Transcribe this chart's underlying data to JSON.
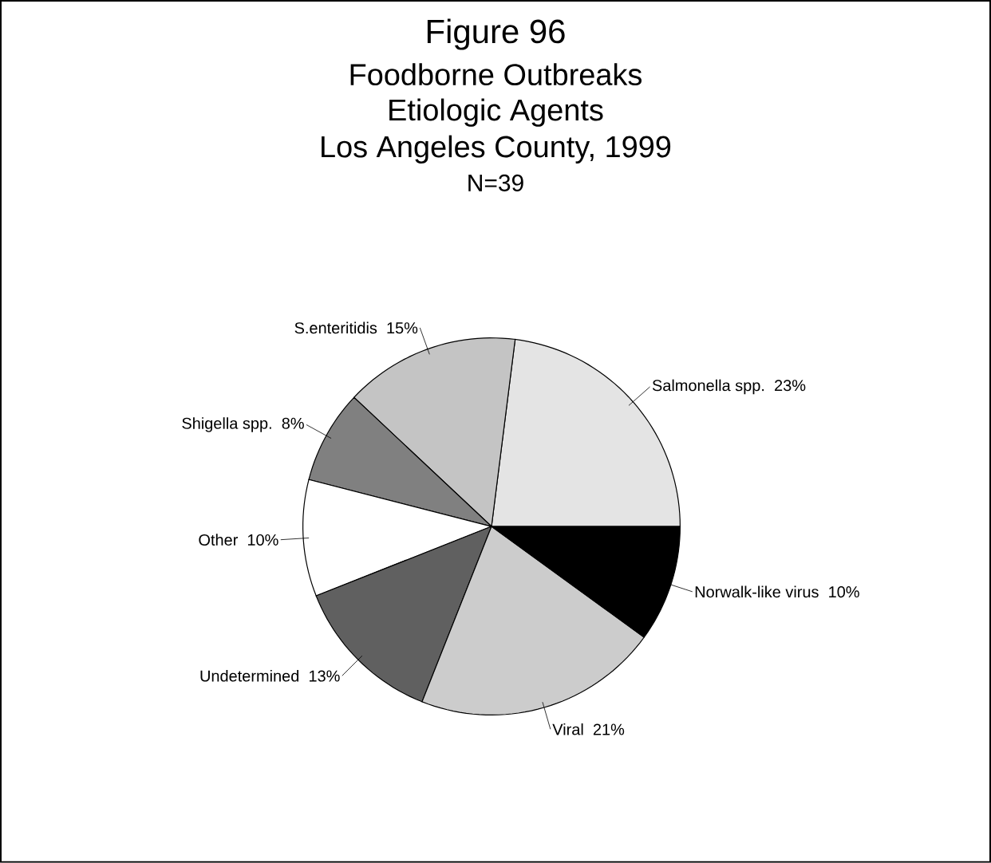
{
  "chart_data": {
    "type": "pie",
    "title": "Figure 96",
    "subtitle": "Foodborne Outbreaks",
    "annotations": [
      "Etiologic Agents",
      "Los Angeles County, 1999",
      "N=39"
    ],
    "categories": [
      "Salmonella spp.",
      "S.enteritidis",
      "Shigella spp.",
      "Other",
      "Undetermined",
      "Viral",
      "Norwalk-like virus"
    ],
    "values": [
      23,
      15,
      8,
      10,
      13,
      21,
      10
    ],
    "value_labels": [
      "23%",
      "15%",
      "8%",
      "10%",
      "13%",
      "21%",
      "10%"
    ],
    "colors": [
      "#e4e4e4",
      "#c4c4c4",
      "#808080",
      "#ffffff",
      "#606060",
      "#cccccc",
      "#000000"
    ]
  }
}
